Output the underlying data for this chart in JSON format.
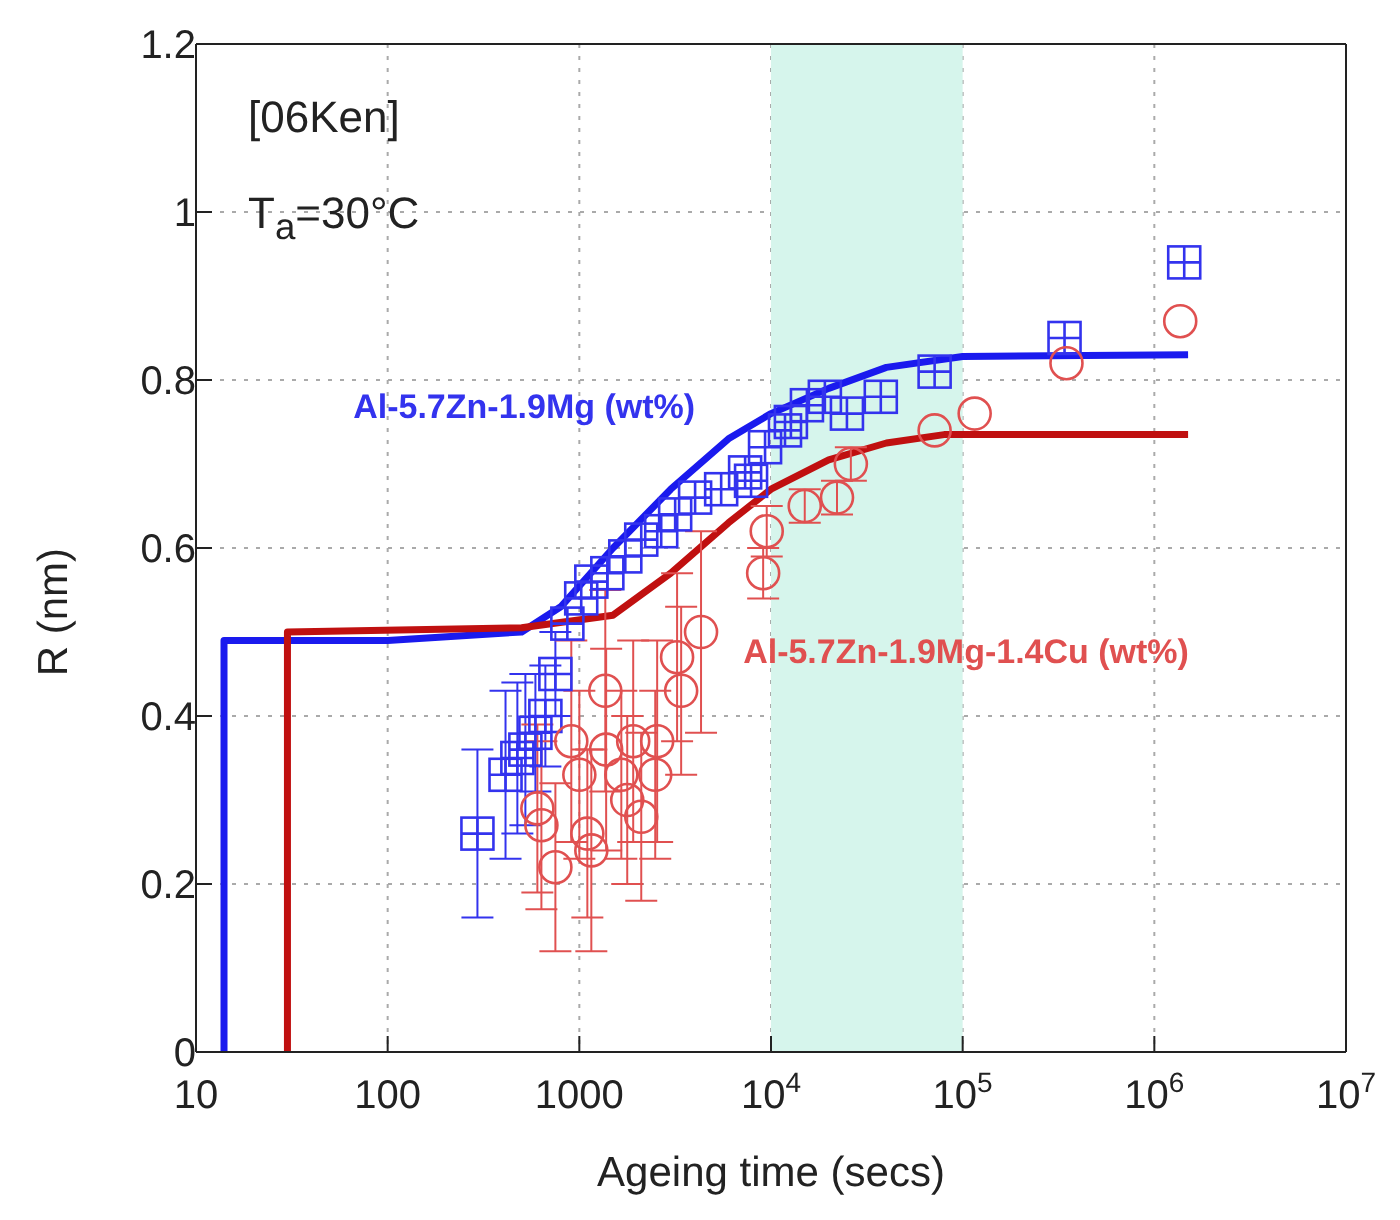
{
  "chart_data": {
    "type": "scatter",
    "xlabel": "Ageing time (secs)",
    "ylabel": "R (nm)",
    "annotations": [
      "[06Ken]",
      "T$_{a}$=30°C"
    ],
    "log": "x",
    "xlim": [
      10,
      10000000
    ],
    "xticks": [
      10,
      100,
      1000,
      {
        "value": 10000,
        "label": "10$^{4}$"
      },
      {
        "value": 100000,
        "label": "10$^{5}$"
      },
      {
        "value": 1000000,
        "label": "10$^{6}$"
      },
      {
        "value": 10000000,
        "label": "10$^{7}$"
      }
    ],
    "ylim": [
      0,
      1.2
    ],
    "yticks": [
      0,
      {
        "value": 0.2,
        "label": "0.2"
      },
      {
        "value": 0.4,
        "label": "0.4"
      },
      {
        "value": 0.6,
        "label": "0.6"
      },
      {
        "value": 0.8,
        "label": "0.8"
      },
      1,
      1.2
    ],
    "grid": true,
    "bands": [
      {
        "axis": "x",
        "from": 10000,
        "to": 100000,
        "color": "#d6f5ec"
      }
    ],
    "series": [
      {
        "name": "Al-5.7Zn-1.9Mg (wt%)",
        "color": "#3333ee",
        "marker": "square",
        "x": [
          294,
          412,
          475,
          523,
          590,
          665,
          750,
          866,
          1023,
          1155,
          1400,
          1737,
          2104,
          2674,
          3162,
          4018,
          5495,
          7328,
          7870,
          9311,
          11830,
          12700,
          15400,
          19100,
          24900,
          37400,
          71400,
          340000,
          1432000
        ],
        "values": [
          0.26,
          0.33,
          0.35,
          0.36,
          0.38,
          0.4,
          0.45,
          0.51,
          0.54,
          0.56,
          0.57,
          0.59,
          0.61,
          0.62,
          0.64,
          0.66,
          0.67,
          0.69,
          0.68,
          0.72,
          0.74,
          0.75,
          0.77,
          0.78,
          0.76,
          0.78,
          0.81,
          0.85,
          0.94
        ],
        "errors": [
          0.1,
          0.1,
          0.09,
          0.09,
          0.07,
          0.06,
          0.05,
          null,
          null,
          null,
          null,
          null,
          null,
          null,
          null,
          null,
          null,
          null,
          null,
          null,
          null,
          null,
          null,
          null,
          null,
          null,
          null,
          null,
          null
        ]
      },
      {
        "name": "Al-5.7Zn-1.9Mg-1.4Cu (wt%)",
        "color": "#e05050",
        "marker": "circle",
        "x": [
          604,
          634,
          750,
          908,
          1000,
          1101,
          1155,
          1366,
          1380,
          1656,
          1778,
          1910,
          2104,
          2489,
          2547,
          3236,
          3398,
          4315,
          9100,
          9500,
          15000,
          22100,
          26100,
          71400,
          115500,
          348000,
          1365000
        ],
        "values": [
          0.29,
          0.27,
          0.22,
          0.37,
          0.33,
          0.26,
          0.24,
          0.43,
          0.36,
          0.33,
          0.3,
          0.37,
          0.28,
          0.33,
          0.37,
          0.47,
          0.43,
          0.5,
          0.57,
          0.62,
          0.65,
          0.66,
          0.7,
          0.74,
          0.76,
          0.82,
          0.87
        ],
        "errors": [
          0.1,
          0.1,
          0.1,
          0.12,
          0.1,
          0.1,
          0.12,
          0.12,
          0.12,
          0.1,
          0.1,
          0.12,
          0.1,
          0.1,
          0.12,
          0.1,
          0.1,
          0.12,
          0.03,
          0.03,
          0.02,
          0.02,
          0.02,
          null,
          null,
          null,
          null
        ]
      },
      {
        "type": "line",
        "color": "#1a1aee",
        "marker": "none",
        "x": [
          14,
          14,
          100,
          500,
          800,
          1500,
          3000,
          6000,
          10000,
          20000,
          40000,
          100000,
          1500000
        ],
        "values": [
          0,
          0.49,
          0.49,
          0.5,
          0.53,
          0.6,
          0.67,
          0.73,
          0.76,
          0.79,
          0.815,
          0.828,
          0.83
        ]
      },
      {
        "type": "line",
        "color": "#c01010",
        "marker": "none",
        "x": [
          30,
          30,
          500,
          1500,
          3000,
          6000,
          10000,
          20000,
          40000,
          80000,
          1500000
        ],
        "values": [
          0,
          0.5,
          0.505,
          0.52,
          0.57,
          0.63,
          0.67,
          0.705,
          0.725,
          0.735,
          0.735
        ]
      }
    ]
  }
}
